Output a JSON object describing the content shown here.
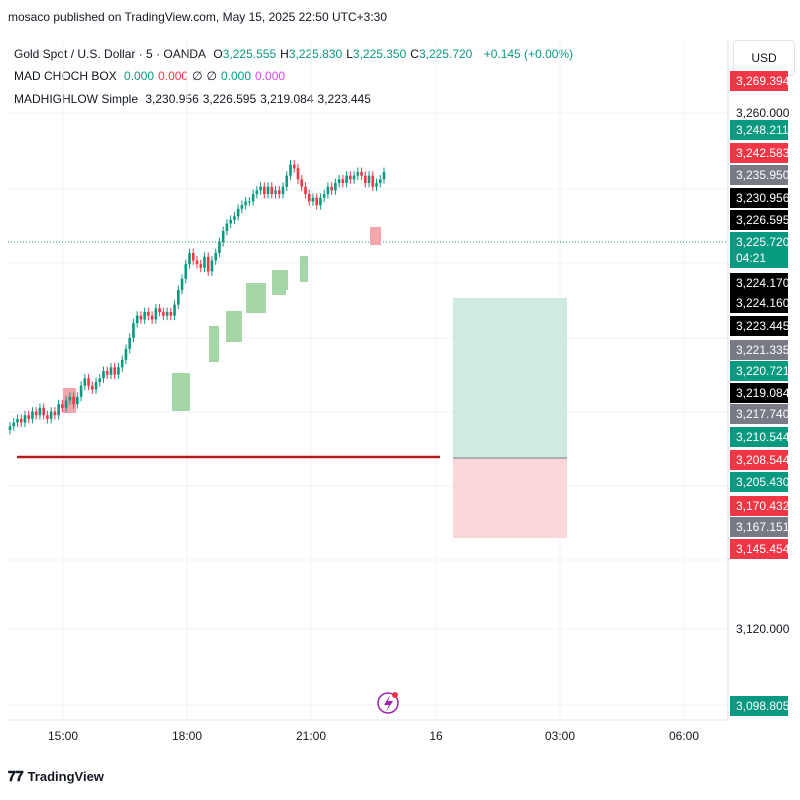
{
  "header": {
    "published_text": "mosaco published on TradingView.com, May 15, 2025 22:50 UTC+3:30"
  },
  "legend": {
    "symbol": "Gold Spot / U.S. Dollar · 5 · OANDA",
    "ohlc": [
      {
        "label": "O",
        "value": "3,225.555"
      },
      {
        "label": "H",
        "value": "3,225.830"
      },
      {
        "label": "L",
        "value": "3,225.350"
      },
      {
        "label": "C",
        "value": "3,225.720"
      }
    ],
    "change": "+0.145 (+0.00%)",
    "indicator1": {
      "name": "MAD CHOCH BOX",
      "values": [
        "0.000",
        "0.000",
        "∅",
        "∅",
        "0.000",
        "0.000"
      ],
      "colors": [
        "#089981",
        "#f23645",
        "#131722",
        "#131722",
        "#089981",
        "#e040fb"
      ]
    },
    "indicator2": {
      "name": "MADHIGHLOW Simple",
      "values": [
        "3,230.956",
        "3,226.595",
        "3,219.084",
        "3,223.445"
      ]
    }
  },
  "currency_button": "USD",
  "footer": {
    "brand": "TradingView",
    "icon": "tradingview-logo-icon"
  },
  "colors": {
    "up": "#089981",
    "down": "#f23645",
    "black_tag": "#000000",
    "gray_tag": "#787b86",
    "hline": "#b71c1c",
    "tp_zone": "#cfe9e3",
    "sl_zone": "#fbd7da",
    "box_green": "#a5d6a7",
    "box_red": "#f5a5ae"
  },
  "chart_data": {
    "type": "candlestick",
    "y_axis": {
      "tick_labels": [
        {
          "label": "3,260.000",
          "value": 3260
        },
        {
          "label": "3,120.000",
          "value": 3120
        }
      ]
    },
    "x_axis": {
      "tick_labels": [
        "15:00",
        "18:00",
        "21:00",
        "16",
        "03:00",
        "06:00"
      ]
    },
    "price_tags": [
      {
        "value": "3,269.394",
        "color": "#f23645",
        "partial": true
      },
      {
        "value": "3,248.211",
        "color": "#089981"
      },
      {
        "value": "3,242.583",
        "color": "#f23645"
      },
      {
        "value": "3,235.950",
        "color": "#787b86"
      },
      {
        "value": "3,230.956",
        "color": "#000000"
      },
      {
        "value": "3,226.595",
        "color": "#000000"
      },
      {
        "value": "3,225.720",
        "color": "#089981",
        "sub": "04:21"
      },
      {
        "value": "3,224.170",
        "color": "#000000"
      },
      {
        "value": "3,224.160",
        "color": "#000000"
      },
      {
        "value": "3,223.445",
        "color": "#000000"
      },
      {
        "value": "3,221.335",
        "color": "#787b86"
      },
      {
        "value": "3,220.721",
        "color": "#089981"
      },
      {
        "value": "3,219.084",
        "color": "#000000"
      },
      {
        "value": "3,217.740",
        "color": "#787b86"
      },
      {
        "value": "3,210.544",
        "color": "#089981"
      },
      {
        "value": "3,208.544",
        "color": "#f23645"
      },
      {
        "value": "3,205.430",
        "color": "#089981"
      },
      {
        "value": "3,170.432",
        "color": "#f23645"
      },
      {
        "value": "3,167.151",
        "color": "#787b86"
      },
      {
        "value": "3,145.454",
        "color": "#f23645"
      },
      {
        "value": "3,098.805",
        "color": "#089981"
      }
    ],
    "candles_close": [
      3175,
      3176,
      3177,
      3176,
      3178,
      3177,
      3179,
      3178,
      3180,
      3178,
      3177,
      3179,
      3178,
      3181,
      3180,
      3182,
      3183,
      3181,
      3183,
      3186,
      3188,
      3186,
      3185,
      3187,
      3188,
      3190,
      3189,
      3191,
      3189,
      3191,
      3193,
      3196,
      3199,
      3203,
      3205,
      3204,
      3206,
      3205,
      3204,
      3207,
      3206,
      3205,
      3206,
      3205,
      3208,
      3212,
      3215,
      3219,
      3222,
      3220,
      3219,
      3218,
      3221,
      3217,
      3220,
      3222,
      3225,
      3228,
      3230,
      3231,
      3232,
      3234,
      3235,
      3236,
      3236,
      3238,
      3239,
      3240,
      3238,
      3240,
      3238,
      3239,
      3238,
      3240,
      3243,
      3246,
      3245,
      3242,
      3240,
      3238,
      3236,
      3237,
      3235,
      3237,
      3238,
      3240,
      3239,
      3241,
      3242,
      3241,
      3243,
      3242,
      3243,
      3244,
      3243,
      3241,
      3243,
      3240,
      3241,
      3242,
      3244
    ]
  }
}
